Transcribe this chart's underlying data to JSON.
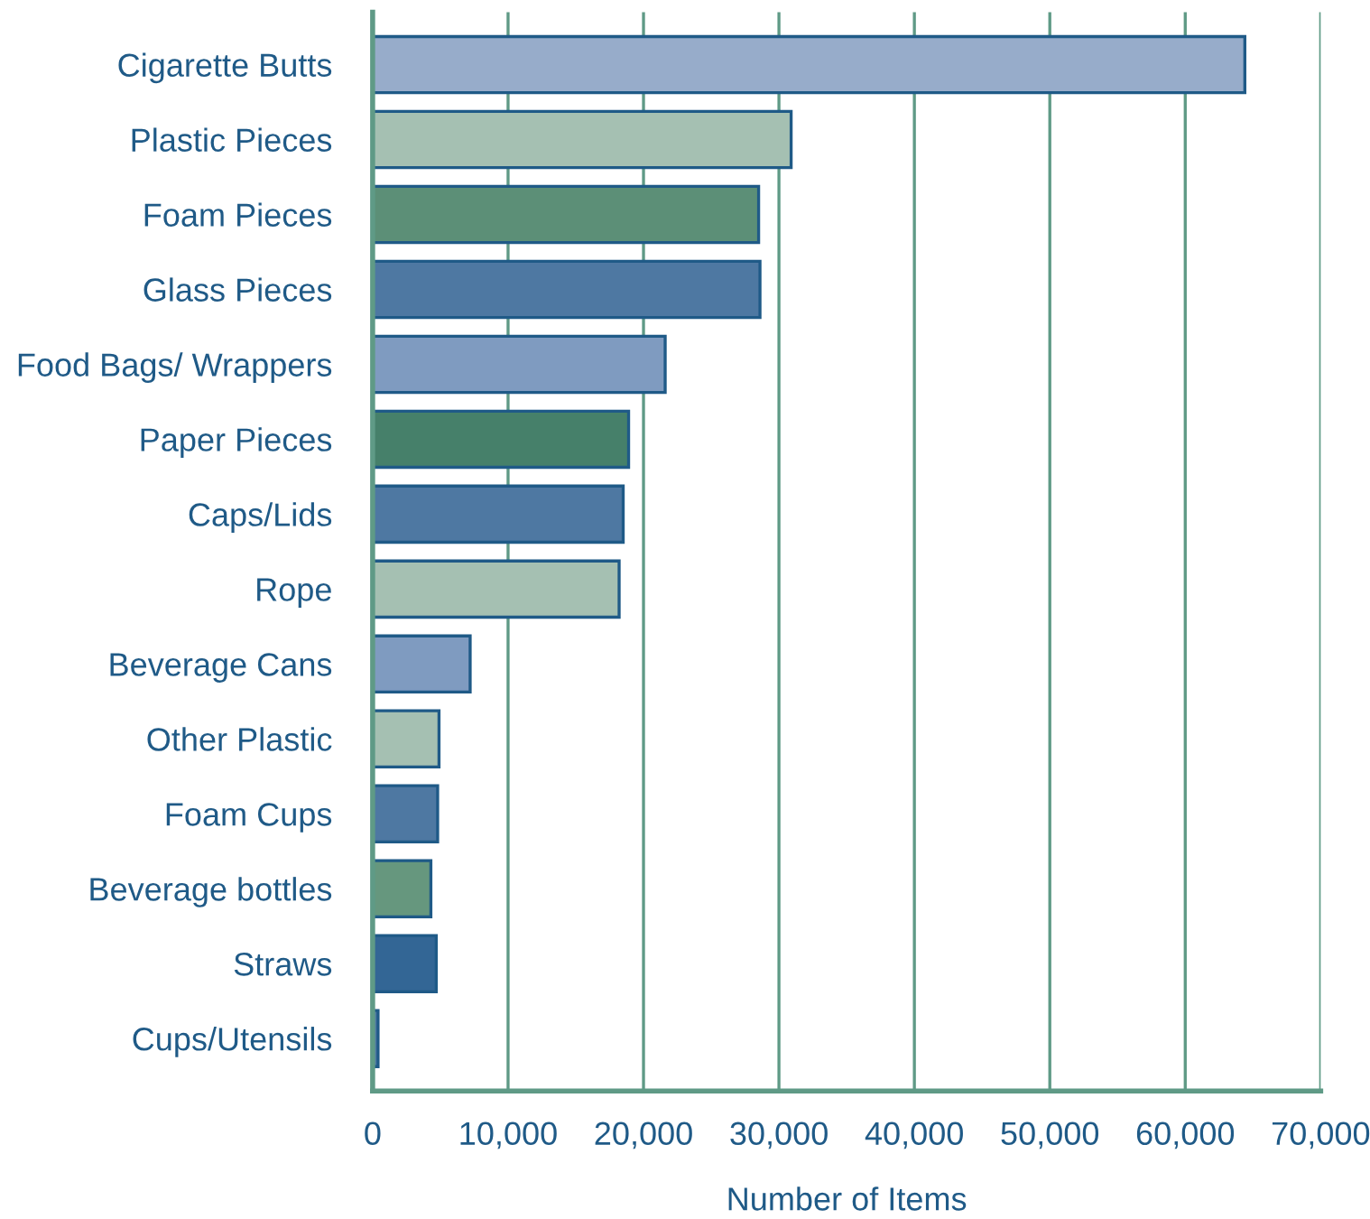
{
  "chart_data": {
    "type": "bar",
    "orientation": "horizontal",
    "xlabel": "Number of Items",
    "categories": [
      "Cigarette Butts",
      "Plastic Pieces",
      "Foam Pieces",
      "Glass Pieces",
      "Food Bags/ Wrappers",
      "Paper Pieces",
      "Caps/Lids",
      "Rope",
      "Beverage Cans",
      "Other Plastic",
      "Foam Cups",
      "Beverage bottles",
      "Straws",
      "Cups/Utensils"
    ],
    "values": [
      64400,
      30900,
      28500,
      28600,
      21600,
      18900,
      18500,
      18200,
      7200,
      4900,
      4800,
      4300,
      4700,
      400
    ],
    "colors": [
      "#97acca",
      "#a5c0b2",
      "#5c8f77",
      "#4e78a2",
      "#7f9bc0",
      "#46806a",
      "#4e78a2",
      "#a5c0b2",
      "#7f9bc0",
      "#a5c0b2",
      "#4e78a2",
      "#66977e",
      "#336695",
      "#4e78a2"
    ],
    "xlim": [
      0,
      70000
    ],
    "xticks": [
      {
        "value": 0,
        "label": "0"
      },
      {
        "value": 10000,
        "label": "10,000"
      },
      {
        "value": 20000,
        "label": "20,000"
      },
      {
        "value": 30000,
        "label": "30,000"
      },
      {
        "value": 40000,
        "label": "40,000"
      },
      {
        "value": 50000,
        "label": "50,000"
      },
      {
        "value": 60000,
        "label": "60,000"
      },
      {
        "value": 70000,
        "label": "70,000"
      }
    ],
    "grid": "x",
    "legend": false
  }
}
